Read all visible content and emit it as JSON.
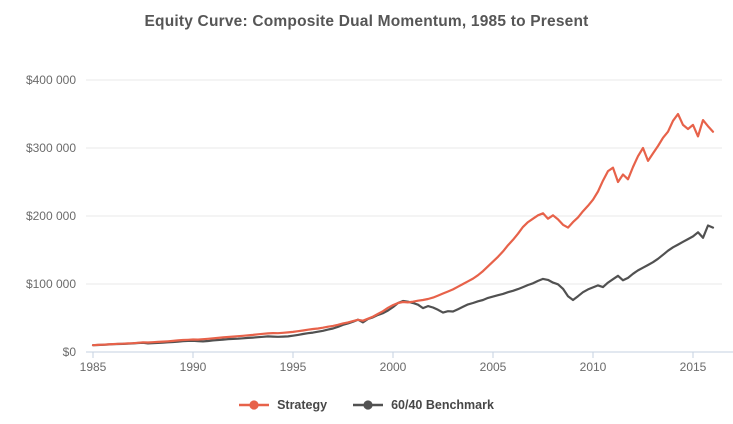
{
  "chart_data": {
    "type": "line",
    "title": "Equity Curve: Composite Dual Momentum, 1985 to Present",
    "x_unit": "year",
    "x_start": 1985,
    "x_end": 2016,
    "points_per_year": 4,
    "x_tick_years": [
      1985,
      1990,
      1995,
      2000,
      2005,
      2010,
      2015
    ],
    "y_axis": {
      "unit": "USD",
      "ylim_thousands": [
        0,
        400
      ],
      "ticks": [
        {
          "value_thousands": 0,
          "label": "$0"
        },
        {
          "value_thousands": 100,
          "label": "$100 000"
        },
        {
          "value_thousands": 200,
          "label": "$200 000"
        },
        {
          "value_thousands": 300,
          "label": "$300 000"
        },
        {
          "value_thousands": 400,
          "label": "$400 000"
        }
      ]
    },
    "grid": "horizontal-only",
    "legend_position": "bottom-center",
    "series": [
      {
        "name": "Strategy",
        "color": "#E7624A",
        "values_thousands": [
          10.0,
          10.4,
          10.8,
          11.2,
          11.6,
          12.0,
          12.2,
          12.6,
          13.0,
          13.6,
          14.2,
          14.0,
          14.4,
          14.8,
          15.3,
          15.8,
          16.3,
          17.0,
          17.6,
          18.0,
          18.4,
          18.2,
          18.8,
          19.4,
          20.0,
          20.8,
          21.4,
          22.0,
          22.6,
          23.2,
          23.8,
          24.5,
          25.2,
          26.0,
          26.8,
          27.4,
          27.8,
          27.6,
          28.2,
          28.8,
          29.6,
          30.6,
          31.6,
          32.8,
          33.8,
          34.6,
          35.8,
          37.2,
          38.4,
          40.0,
          42.0,
          43.6,
          45.4,
          47.4,
          46.0,
          49.0,
          52.0,
          56.0,
          60.0,
          65.0,
          69.0,
          72.0,
          73.5,
          73.0,
          74.0,
          75.5,
          76.5,
          78.0,
          80.0,
          83.0,
          86.0,
          89.0,
          92.0,
          96.0,
          100.0,
          104.0,
          108.0,
          113.0,
          119.0,
          126.0,
          133.0,
          140.0,
          148.0,
          157.0,
          165.0,
          174.0,
          184.0,
          191.0,
          196.0,
          201.0,
          204.0,
          196.0,
          201.0,
          195.0,
          187.0,
          183.0,
          191.0,
          198.0,
          207.0,
          215.0,
          224.0,
          236.0,
          252.0,
          266.0,
          271.0,
          250.0,
          261.0,
          254.0,
          272.0,
          288.0,
          300.0,
          281.0,
          292.0,
          303.0,
          315.0,
          324.0,
          340.0,
          350.0,
          334.0,
          328.0,
          334.0,
          317.0,
          341.0,
          332.0,
          324.0
        ]
      },
      {
        "name": "60/40 Benchmark",
        "color": "#515151",
        "values_thousands": [
          10.0,
          10.3,
          10.6,
          11.0,
          11.4,
          11.8,
          11.9,
          12.2,
          12.7,
          13.2,
          13.6,
          12.6,
          13.0,
          13.4,
          13.8,
          14.2,
          14.7,
          15.3,
          15.9,
          16.3,
          16.5,
          16.0,
          15.6,
          16.2,
          17.0,
          17.6,
          18.2,
          18.9,
          19.2,
          19.6,
          20.1,
          20.7,
          21.2,
          21.8,
          22.4,
          22.9,
          22.7,
          22.4,
          22.7,
          23.0,
          24.0,
          25.2,
          26.4,
          27.6,
          28.6,
          29.8,
          31.2,
          33.0,
          34.5,
          37.0,
          40.0,
          42.0,
          44.5,
          47.5,
          43.5,
          48.5,
          51.0,
          54.5,
          57.0,
          61.0,
          66.0,
          72.0,
          75.0,
          74.0,
          72.0,
          69.5,
          64.5,
          67.5,
          65.5,
          62.0,
          58.0,
          60.0,
          59.5,
          63.0,
          66.5,
          70.0,
          72.0,
          74.5,
          76.5,
          79.5,
          81.5,
          83.5,
          85.5,
          88.0,
          90.0,
          92.5,
          95.5,
          98.5,
          101.0,
          104.5,
          107.5,
          106.0,
          102.0,
          99.5,
          93.0,
          82.0,
          76.5,
          82.0,
          88.0,
          92.0,
          95.0,
          98.0,
          95.5,
          102.0,
          107.0,
          112.0,
          105.5,
          109.0,
          115.0,
          120.0,
          124.0,
          128.0,
          132.0,
          137.0,
          143.0,
          149.0,
          154.0,
          158.0,
          162.0,
          166.0,
          170.0,
          176.0,
          168.0,
          186.0,
          183.0
        ]
      }
    ],
    "colors": {
      "title_text": "#565656",
      "axis_label_text": "#6b6b6b",
      "gridline": "#e9e9e9",
      "axis_line": "#c6d2e0",
      "legend_text": "#474747",
      "background": "#ffffff"
    }
  }
}
